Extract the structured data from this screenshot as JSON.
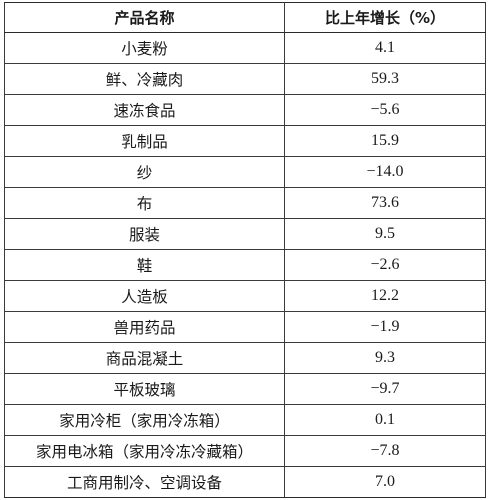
{
  "table": {
    "headers": [
      "产品名称",
      "比上年增长（%）"
    ],
    "rows": [
      {
        "name": "小麦粉",
        "value": "4.1"
      },
      {
        "name": "鲜、冷藏肉",
        "value": "59.3"
      },
      {
        "name": "速冻食品",
        "value": "−5.6"
      },
      {
        "name": "乳制品",
        "value": "15.9"
      },
      {
        "name": "纱",
        "value": "−14.0"
      },
      {
        "name": "布",
        "value": "73.6"
      },
      {
        "name": "服装",
        "value": "9.5"
      },
      {
        "name": "鞋",
        "value": "−2.6"
      },
      {
        "name": "人造板",
        "value": "12.2"
      },
      {
        "name": "兽用药品",
        "value": "−1.9"
      },
      {
        "name": "商品混凝土",
        "value": "9.3"
      },
      {
        "name": "平板玻璃",
        "value": "−9.7"
      },
      {
        "name": "家用冷柜（家用冷冻箱）",
        "value": "0.1"
      },
      {
        "name": "家用电冰箱（家用冷冻冷藏箱）",
        "value": "−7.8"
      },
      {
        "name": "工商用制冷、空调设备",
        "value": "7.0"
      }
    ]
  }
}
